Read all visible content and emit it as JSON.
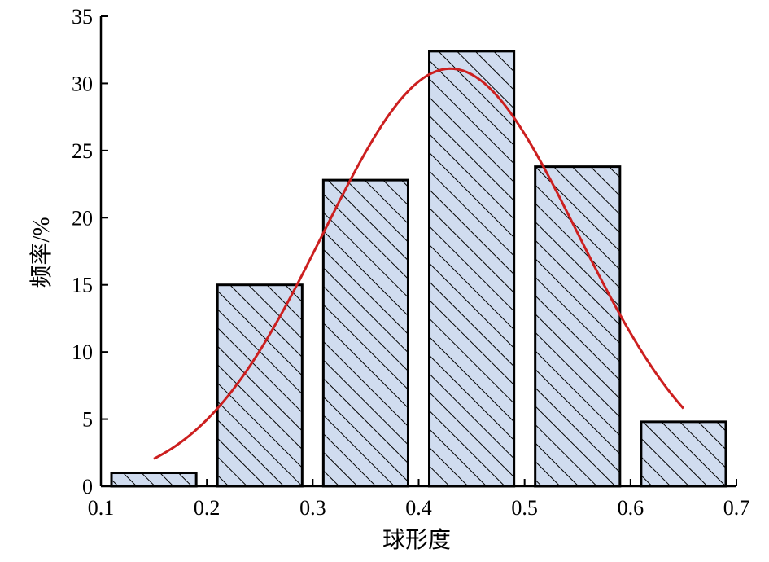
{
  "chart_data": {
    "type": "bar",
    "title": "",
    "xlabel": "球形度",
    "ylabel": "频率/%",
    "xlim": [
      0.1,
      0.7
    ],
    "ylim": [
      0,
      35
    ],
    "xticks": [
      "0.1",
      "0.2",
      "0.3",
      "0.4",
      "0.5",
      "0.6",
      "0.7"
    ],
    "yticks": [
      "0",
      "5",
      "10",
      "15",
      "20",
      "25",
      "30",
      "35"
    ],
    "grid": false,
    "legend": "none",
    "bins": [
      {
        "from": 0.11,
        "to": 0.19,
        "value": 1.0
      },
      {
        "from": 0.21,
        "to": 0.29,
        "value": 15.0
      },
      {
        "from": 0.31,
        "to": 0.39,
        "value": 22.8
      },
      {
        "from": 0.41,
        "to": 0.49,
        "value": 32.4
      },
      {
        "from": 0.51,
        "to": 0.59,
        "value": 23.8
      },
      {
        "from": 0.61,
        "to": 0.69,
        "value": 4.8
      }
    ],
    "fit_curve": {
      "type": "normal",
      "mean": 0.43,
      "peak": 31.1,
      "sd": 0.12,
      "x_start": 0.15,
      "x_end": 0.65
    },
    "colors": {
      "bar_fill": "#d0dcef",
      "bar_edge": "#000000",
      "hatch": "#000000",
      "curve": "#cc1f1f"
    }
  }
}
